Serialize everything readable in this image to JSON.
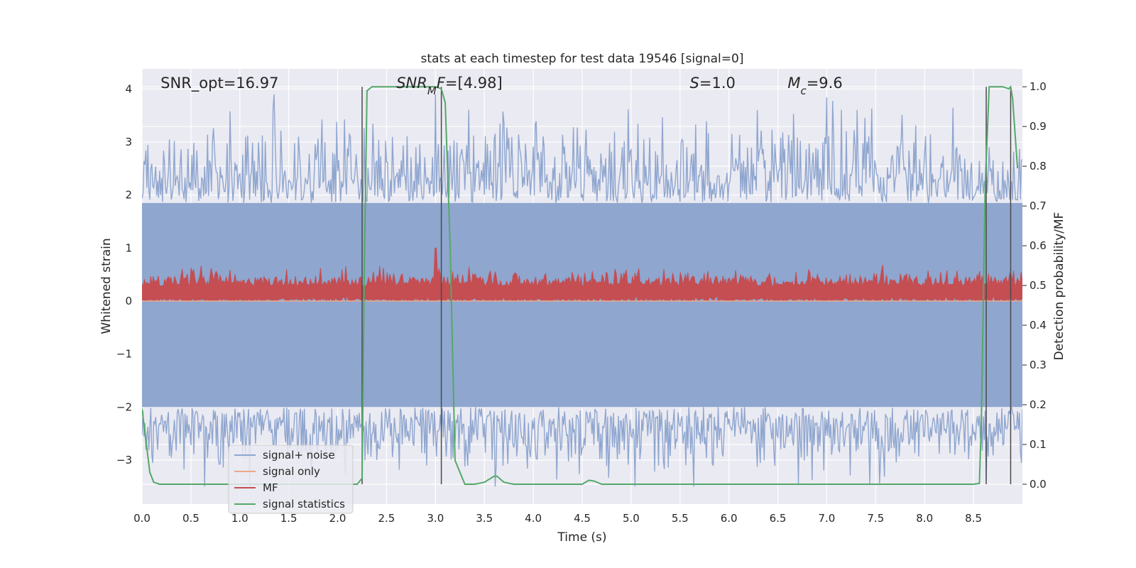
{
  "chart_data": {
    "type": "line",
    "title": "stats at each timestep for test data 19546 [signal=0]",
    "xlabel": "Time (s)",
    "ylabel": "Whitened strain",
    "ylabel_right": "Detection probability/MF",
    "xlim": [
      0.0,
      9.0
    ],
    "ylim": [
      -3.83,
      4.38
    ],
    "ylim_right": [
      -0.05,
      1.045
    ],
    "x_ticks": [
      "0.0",
      "0.5",
      "1.0",
      "1.5",
      "2.0",
      "2.5",
      "3.0",
      "3.5",
      "4.0",
      "4.5",
      "5.0",
      "5.5",
      "6.0",
      "6.5",
      "7.0",
      "7.5",
      "8.0",
      "8.5"
    ],
    "x_tick_values": [
      0.0,
      0.5,
      1.0,
      1.5,
      2.0,
      2.5,
      3.0,
      3.5,
      4.0,
      4.5,
      5.0,
      5.5,
      6.0,
      6.5,
      7.0,
      7.5,
      8.0,
      8.5
    ],
    "y_ticks": [
      "−3",
      "−2",
      "−1",
      "0",
      "1",
      "2",
      "3",
      "4"
    ],
    "y_tick_values": [
      -3,
      -2,
      -1,
      0,
      1,
      2,
      3,
      4
    ],
    "y_right_ticks": [
      "0.0",
      "0.1",
      "0.2",
      "0.3",
      "0.4",
      "0.5",
      "0.6",
      "0.7",
      "0.8",
      "0.9",
      "1.0"
    ],
    "y_right_tick_values": [
      0.0,
      0.1,
      0.2,
      0.3,
      0.4,
      0.5,
      0.6,
      0.7,
      0.8,
      0.9,
      1.0
    ],
    "annotations": [
      {
        "text": "SNR_opt=16.97",
        "x": 0.19
      },
      {
        "text": "SNR_MF=[4.98]",
        "x": 2.6
      },
      {
        "text": "S=1.0",
        "x": 5.6
      },
      {
        "text": "M_c=9.6",
        "x": 6.6
      }
    ],
    "vertical_lines": [
      2.25,
      3.06,
      8.63,
      8.88
    ],
    "legend": [
      "signal+ noise",
      "signal only",
      "MF",
      "signal statistics"
    ],
    "legend_position": "lower-left",
    "colors": {
      "signal_noise": "#8fa6cf",
      "signal_only": "#e8a98c",
      "mf": "#c44e52",
      "stats": "#55a868",
      "vline": "#4a4a4a",
      "plot_bg": "#eaeaf2",
      "grid": "#ffffff"
    },
    "series": [
      {
        "name": "signal+ noise",
        "axis": "left",
        "description": "dense noise band approx between -2.2 and 2.3 with spikes up to 3.9 and down to -3.5",
        "band_low": -2.0,
        "band_high": 1.85,
        "max": 3.9,
        "min": -3.5
      },
      {
        "name": "signal only",
        "axis": "left",
        "x": [
          0.0,
          9.0
        ],
        "y": [
          0.0,
          0.0
        ]
      },
      {
        "name": "MF",
        "axis": "left",
        "description": "matched-filter output approx 0 to 0.6 with peak near 1.0 at t=3.0",
        "base": 0.0,
        "mean": 0.25,
        "max": 1.0
      },
      {
        "name": "signal statistics",
        "axis": "right",
        "x": [
          0.0,
          0.02,
          0.08,
          0.12,
          0.18,
          0.3,
          0.6,
          1.0,
          1.5,
          2.0,
          2.2,
          2.25,
          2.27,
          2.3,
          2.35,
          2.5,
          2.8,
          3.0,
          3.06,
          3.1,
          3.15,
          3.2,
          3.3,
          3.4,
          3.5,
          3.6,
          3.63,
          3.7,
          3.8,
          4.0,
          4.5,
          4.57,
          4.62,
          4.7,
          5.0,
          6.0,
          7.0,
          8.0,
          8.5,
          8.56,
          8.58,
          8.62,
          8.66,
          8.7,
          8.75,
          8.8,
          8.86,
          8.88,
          8.9,
          8.95
        ],
        "y": [
          0.19,
          0.15,
          0.03,
          0.005,
          0.0,
          0.0,
          0.0,
          0.0,
          0.0,
          0.0,
          0.0,
          0.015,
          0.5,
          0.99,
          1.0,
          1.0,
          1.0,
          1.0,
          0.995,
          0.96,
          0.6,
          0.06,
          0.0,
          0.0,
          0.005,
          0.02,
          0.02,
          0.005,
          0.0,
          0.0,
          0.0,
          0.01,
          0.008,
          0.0,
          0.0,
          0.0,
          0.0,
          0.0,
          0.0,
          0.002,
          0.15,
          0.75,
          1.0,
          1.0,
          1.0,
          1.0,
          0.995,
          1.0,
          0.97,
          0.795
        ]
      }
    ]
  }
}
